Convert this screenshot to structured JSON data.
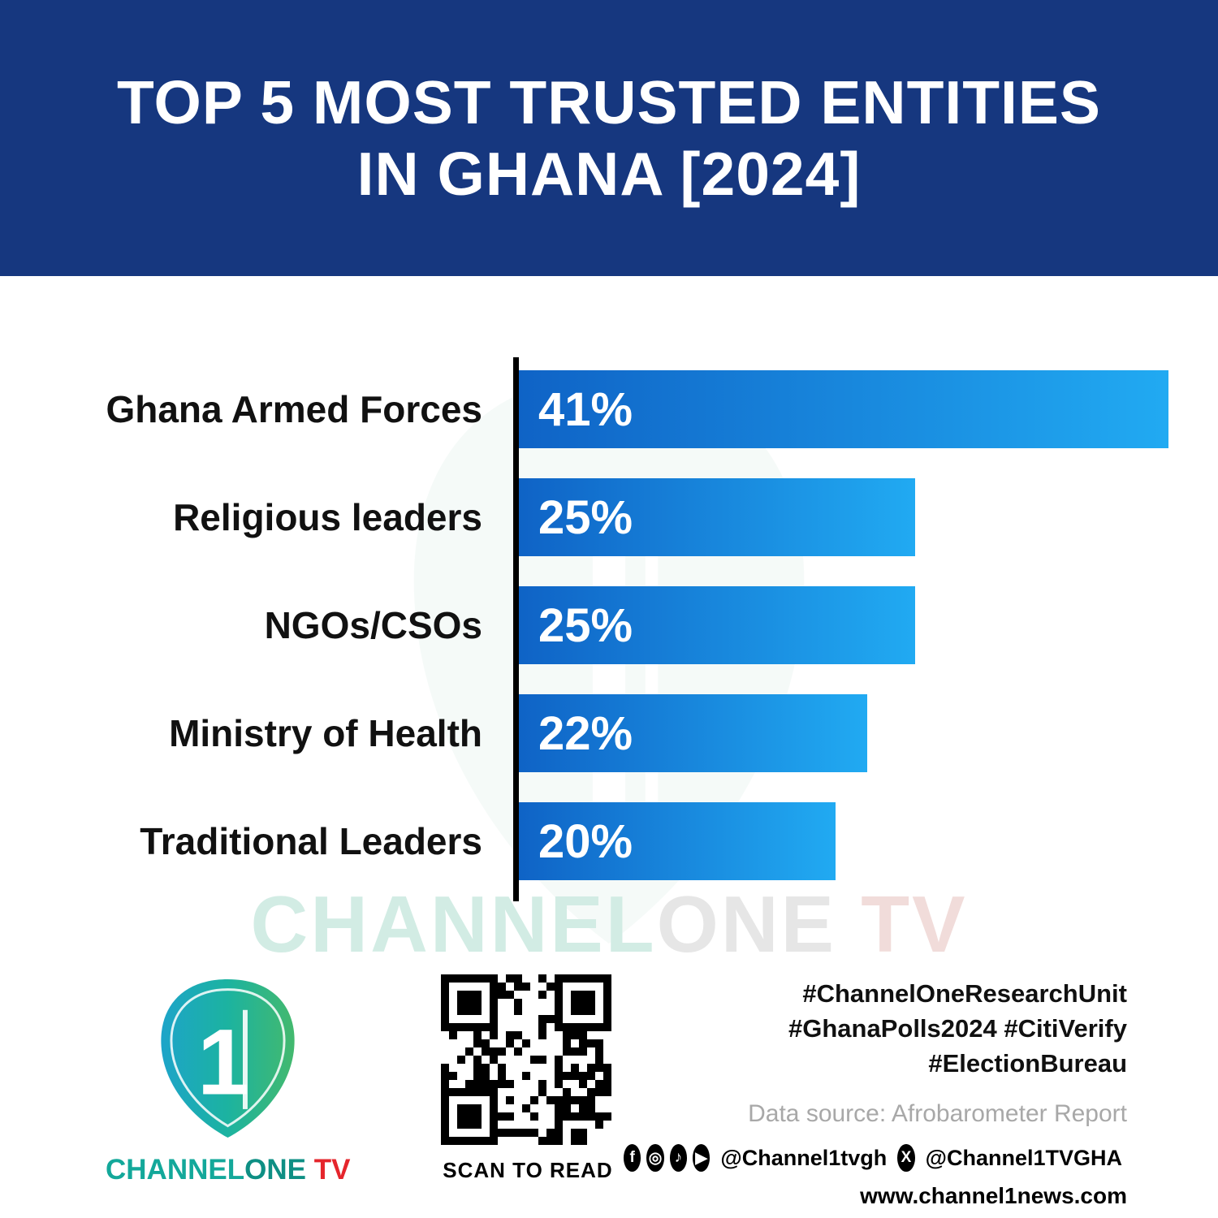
{
  "header": {
    "title_line1": "TOP 5 MOST TRUSTED ENTITIES",
    "title_line2": "IN GHANA [2024]"
  },
  "chart_data": {
    "type": "bar",
    "orientation": "horizontal",
    "title": "Top 5 Most Trusted Entities in Ghana [2024]",
    "categories": [
      "Ghana Armed Forces",
      "Religious leaders",
      "NGOs/CSOs",
      "Ministry of Health",
      "Traditional Leaders"
    ],
    "values": [
      41,
      25,
      25,
      22,
      20
    ],
    "value_labels": [
      "41%",
      "25%",
      "25%",
      "22%",
      "20%"
    ],
    "xlim": [
      0,
      41
    ],
    "grid": false,
    "legend": false,
    "bar_color_start": "#0f63c6",
    "bar_color_end": "#21aaf2",
    "axis_color": "#000000"
  },
  "watermark": {
    "part1": "CHANNEL",
    "part2": "ONE",
    "part3": " TV"
  },
  "footer": {
    "logo": {
      "numeral": "1",
      "text_part1": "CHANNEL",
      "text_part2": "ONE",
      "text_part3": " TV",
      "color_teal": "#13a89a",
      "color_green": "#43b96e",
      "color_red": "#e5252c"
    },
    "qr_caption": "SCAN TO READ",
    "hashtags_line1": "#ChannelOneResearchUnit",
    "hashtags_line2": "#GhanaPolls2024 #CitiVerify",
    "hashtags_line3": "#ElectionBureau",
    "data_source": "Data source: Afrobarometer Report",
    "social": {
      "icons": [
        {
          "name": "facebook-icon",
          "glyph": "f"
        },
        {
          "name": "instagram-icon",
          "glyph": "◎"
        },
        {
          "name": "tiktok-icon",
          "glyph": "♪"
        },
        {
          "name": "youtube-icon",
          "glyph": "▶"
        }
      ],
      "handle1": "@Channel1tvgh",
      "x_icon_glyph": "X",
      "handle2": "@Channel1TVGHA"
    },
    "website": "www.channel1news.com"
  }
}
